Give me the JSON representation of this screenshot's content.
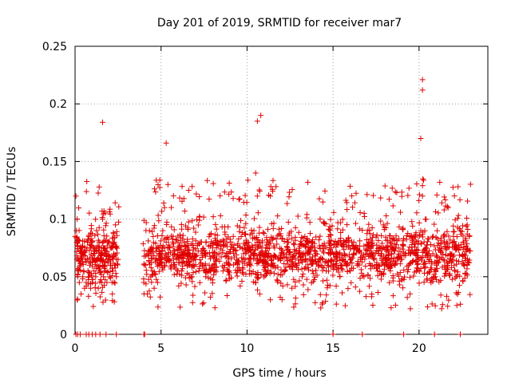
{
  "chart_data": {
    "type": "scatter",
    "title": "Day 201 of 2019, SRMTID for receiver mar7",
    "xlabel": "GPS time / hours",
    "ylabel": "SRMTID / TECUs",
    "xlim": [
      0,
      24
    ],
    "ylim": [
      0,
      0.25
    ],
    "x_ticks": [
      0,
      5,
      10,
      15,
      20
    ],
    "x_tick_labels": [
      "0",
      "5",
      "10",
      "15",
      "20"
    ],
    "y_ticks": [
      0,
      0.05,
      0.1,
      0.15,
      0.2,
      0.25
    ],
    "y_tick_labels": [
      "0",
      "0.05",
      "0.1",
      "0.15",
      "0.2",
      "0.25"
    ],
    "grid": true,
    "marker": "+",
    "marker_color": "#e00000",
    "series": [
      {
        "name": "SRMTID",
        "x": [
          0.0,
          0.05,
          0.08,
          0.1,
          0.12,
          0.15,
          0.2,
          0.25,
          0.3,
          0.35,
          0.4,
          0.45,
          0.5,
          0.55,
          0.6,
          0.65,
          0.7,
          0.75,
          0.8,
          0.85,
          0.9,
          0.95,
          1.0,
          1.05,
          1.1,
          1.15,
          1.2,
          1.25,
          1.3,
          1.35,
          1.4,
          1.45,
          1.5,
          1.55,
          1.6,
          1.65,
          1.7,
          1.75,
          1.8,
          1.85,
          1.9,
          1.95,
          2.0,
          2.05,
          2.1,
          2.15,
          2.2,
          2.25,
          2.3,
          2.35,
          2.4,
          2.5,
          4.0,
          4.1,
          4.2,
          4.3,
          4.4,
          4.5,
          4.6,
          4.7,
          4.8,
          4.9,
          5.0,
          5.1,
          5.2,
          5.3,
          5.4,
          5.5,
          5.6,
          5.7,
          5.8,
          5.9,
          6.0,
          6.2,
          6.4,
          6.6,
          6.8,
          7.0,
          7.2,
          7.4,
          7.6,
          7.8,
          8.0,
          8.2,
          8.4,
          8.6,
          8.8,
          9.0,
          9.2,
          9.4,
          9.6,
          9.8,
          10.0,
          10.2,
          10.4,
          10.5,
          10.6,
          10.8,
          11.0,
          11.2,
          11.4,
          11.6,
          11.8,
          12.0,
          12.2,
          12.4,
          12.6,
          12.8,
          13.0,
          13.2,
          13.4,
          13.6,
          13.8,
          14.0,
          14.2,
          14.4,
          14.6,
          14.8,
          15.0,
          15.2,
          15.4,
          15.6,
          15.8,
          16.0,
          16.2,
          16.4,
          16.6,
          16.8,
          17.0,
          17.2,
          17.4,
          17.6,
          17.8,
          18.0,
          18.2,
          18.4,
          18.6,
          18.8,
          19.0,
          19.2,
          19.4,
          19.6,
          19.8,
          20.0,
          20.1,
          20.2,
          20.4,
          20.6,
          20.8,
          21.0,
          21.2,
          21.4,
          21.6,
          21.8,
          22.0,
          22.2,
          22.4,
          22.6,
          22.8,
          0.1,
          1.6,
          5.3,
          10.6,
          10.8,
          20.1,
          20.2,
          20.2
        ],
        "y": [
          0.085,
          0.12,
          0.09,
          0.065,
          0.1,
          0.05,
          0.055,
          0.045,
          0.06,
          0.035,
          0.07,
          0.05,
          0.055,
          0.04,
          0.065,
          0.045,
          0.075,
          0.055,
          0.05,
          0.06,
          0.04,
          0.08,
          0.045,
          0.065,
          0.055,
          0.07,
          0.05,
          0.09,
          0.06,
          0.04,
          0.075,
          0.055,
          0.065,
          0.045,
          0.1,
          0.05,
          0.06,
          0.07,
          0.055,
          0.045,
          0.08,
          0.065,
          0.05,
          0.06,
          0.075,
          0.045,
          0.055,
          0.07,
          0.06,
          0.095,
          0.05,
          0.065,
          0.045,
          0.06,
          0.035,
          0.07,
          0.05,
          0.055,
          0.04,
          0.065,
          0.045,
          0.07,
          0.06,
          0.09,
          0.11,
          0.08,
          0.13,
          0.075,
          0.06,
          0.085,
          0.07,
          0.065,
          0.075,
          0.055,
          0.07,
          0.06,
          0.05,
          0.065,
          0.055,
          0.07,
          0.05,
          0.06,
          0.075,
          0.065,
          0.08,
          0.055,
          0.07,
          0.06,
          0.085,
          0.065,
          0.055,
          0.07,
          0.06,
          0.075,
          0.09,
          0.14,
          0.12,
          0.065,
          0.07,
          0.08,
          0.06,
          0.075,
          0.065,
          0.07,
          0.055,
          0.08,
          0.065,
          0.06,
          0.07,
          0.05,
          0.065,
          0.075,
          0.055,
          0.07,
          0.06,
          0.065,
          0.055,
          0.075,
          0.06,
          0.07,
          0.05,
          0.065,
          0.06,
          0.055,
          0.07,
          0.06,
          0.065,
          0.05,
          0.07,
          0.06,
          0.065,
          0.055,
          0.07,
          0.06,
          0.065,
          0.07,
          0.06,
          0.075,
          0.065,
          0.07,
          0.06,
          0.08,
          0.07,
          0.065,
          0.09,
          0.12,
          0.075,
          0.065,
          0.07,
          0.06,
          0.075,
          0.065,
          0.08,
          0.07,
          0.085,
          0.075,
          0.09,
          0.08,
          0.095,
          0.08,
          0.184,
          0.166,
          0.185,
          0.19,
          0.17,
          0.212,
          0.221
        ]
      }
    ],
    "zero_points_x": [
      0.05,
      0.15,
      0.3,
      0.65,
      0.8,
      1.0,
      1.2,
      1.45,
      1.8,
      2.4,
      4.0,
      4.05,
      15.0,
      16.7,
      19.1,
      20.9,
      22.4
    ]
  }
}
